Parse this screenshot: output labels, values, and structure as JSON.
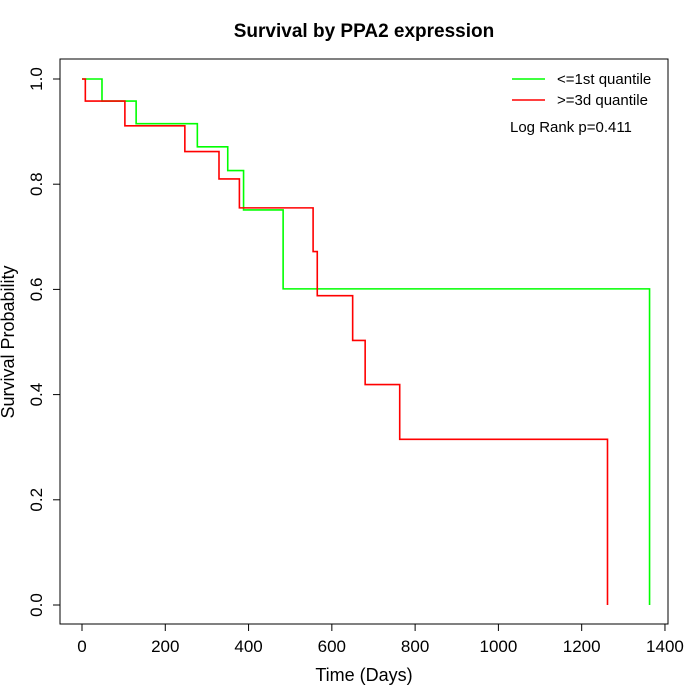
{
  "chart_data": {
    "type": "line",
    "title": "Survival by PPA2 expression",
    "xlabel": "Time (Days)",
    "ylabel": "Survival Probability",
    "xlim": [
      0,
      1400
    ],
    "ylim": [
      0,
      1
    ],
    "x_ticks": [
      0,
      200,
      400,
      600,
      800,
      1000,
      1200,
      1400
    ],
    "y_ticks": [
      0.0,
      0.2,
      0.4,
      0.6,
      0.8,
      1.0
    ],
    "x_tick_labels": [
      "0",
      "200",
      "400",
      "600",
      "800",
      "1000",
      "1200",
      "1400"
    ],
    "y_tick_labels": [
      "0.0",
      "0.2",
      "0.4",
      "0.6",
      "0.8",
      "1.0"
    ],
    "grid": false,
    "legend_position": "top-right",
    "annotation": "Log Rank p=0.411",
    "series": [
      {
        "name": "<=1st quantile",
        "color": "#00ff00",
        "steps": [
          [
            0,
            1.0
          ],
          [
            48,
            0.958
          ],
          [
            130,
            0.915
          ],
          [
            277,
            0.871
          ],
          [
            350,
            0.826
          ],
          [
            388,
            0.751
          ],
          [
            483,
            0.601
          ],
          [
            1363,
            0.0
          ]
        ]
      },
      {
        "name": ">=3d quantile",
        "color": "#ff0000",
        "steps": [
          [
            0,
            1.0
          ],
          [
            8,
            0.958
          ],
          [
            103,
            0.911
          ],
          [
            247,
            0.862
          ],
          [
            329,
            0.81
          ],
          [
            378,
            0.755
          ],
          [
            555,
            0.672
          ],
          [
            565,
            0.588
          ],
          [
            650,
            0.503
          ],
          [
            680,
            0.419
          ],
          [
            763,
            0.315
          ],
          [
            1262,
            0.0
          ]
        ]
      }
    ]
  }
}
